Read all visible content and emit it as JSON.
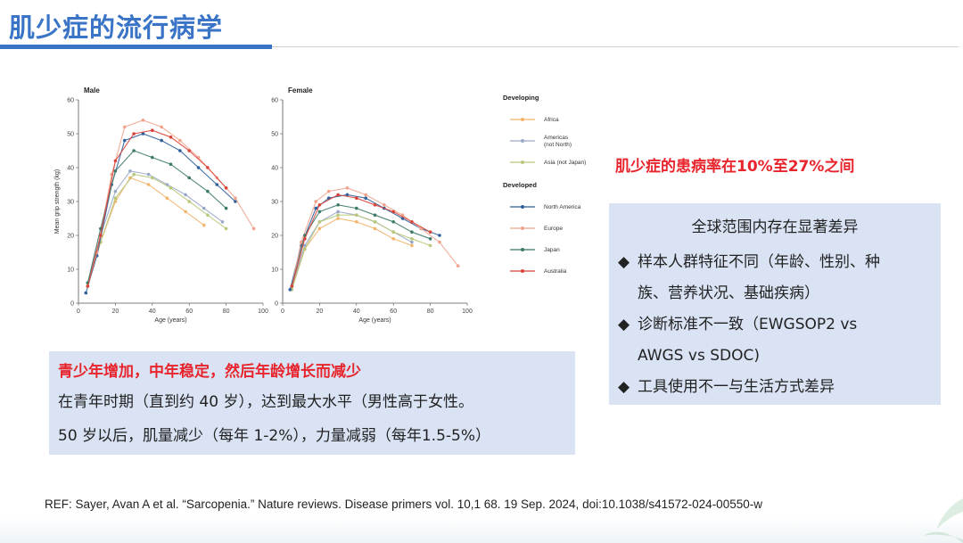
{
  "slide": {
    "title": "肌少症的流行病学",
    "prevalence_note": "肌少症的患病率在10%至27%之间",
    "right_box": {
      "heading": "全球范围内存在显著差异",
      "items": [
        "样本人群特征不同（年龄、性别、种",
        "族、营养状况、基础疾病）",
        "诊断标准不一致（EWGSOP2 vs",
        "AWGS vs SDOC)",
        "工具使用不一与生活方式差异"
      ],
      "bullet": "◆"
    },
    "left_box": {
      "highlight": "青少年增加，中年稳定，然后年龄增长而减少",
      "line1": "在青年时期（直到约 40 岁），达到最大水平（男性高于女性。",
      "line2": "50 岁以后，肌量减少（每年 1-2%），力量减弱（每年1.5-5%）"
    },
    "reference": "REF: Sayer, Avan A et al. “Sarcopenia.” Nature reviews. Disease primers vol. 10,1 68. 19 Sep. 2024, doi:10.1038/s41572-024-00550-w"
  },
  "colors": {
    "title": "#3a74c6",
    "red": "#e8242c",
    "box_bg": "#d9e3f4",
    "Africa": "#f2b36b",
    "Americas (not North)": "#9aa8c8",
    "Asia (not Japan)": "#b8c87a",
    "North America": "#2f5f9a",
    "Europe": "#f0a48e",
    "Japan": "#3e7a6a",
    "Australia": "#d9443a"
  },
  "chart_data": [
    {
      "type": "line",
      "title": "Male",
      "xlabel": "Age (years)",
      "ylabel": "Mean grip strength (kg)",
      "xlim": [
        0,
        100
      ],
      "ylim": [
        0,
        60
      ],
      "xticks": [
        0,
        20,
        40,
        60,
        80,
        100
      ],
      "yticks": [
        0,
        10,
        20,
        30,
        40,
        50,
        60
      ],
      "series": [
        {
          "name": "Africa",
          "x": [
            5,
            12,
            20,
            28,
            38,
            48,
            58,
            68
          ],
          "y": [
            5,
            18,
            30,
            37,
            35,
            31,
            27,
            23
          ]
        },
        {
          "name": "Americas (not North)",
          "x": [
            5,
            12,
            20,
            28,
            38,
            48,
            58,
            68,
            78
          ],
          "y": [
            6,
            20,
            33,
            39,
            38,
            35,
            32,
            28,
            24
          ]
        },
        {
          "name": "Asia (not Japan)",
          "x": [
            5,
            12,
            20,
            30,
            40,
            50,
            60,
            70,
            80
          ],
          "y": [
            5,
            18,
            31,
            38,
            37,
            34,
            30,
            26,
            22
          ]
        },
        {
          "name": "North America",
          "x": [
            4,
            10,
            18,
            25,
            35,
            45,
            55,
            65,
            75,
            85
          ],
          "y": [
            3,
            14,
            35,
            48,
            50,
            48,
            45,
            40,
            35,
            30
          ]
        },
        {
          "name": "Europe",
          "x": [
            5,
            10,
            18,
            25,
            35,
            45,
            55,
            65,
            75,
            85,
            95
          ],
          "y": [
            5,
            15,
            38,
            52,
            54,
            52,
            48,
            43,
            37,
            31,
            22
          ]
        },
        {
          "name": "Japan",
          "x": [
            5,
            12,
            20,
            30,
            40,
            50,
            60,
            70,
            80
          ],
          "y": [
            6,
            22,
            39,
            45,
            43,
            41,
            37,
            33,
            28
          ]
        },
        {
          "name": "Australia",
          "x": [
            5,
            12,
            20,
            30,
            40,
            50,
            60,
            70,
            80
          ],
          "y": [
            5,
            20,
            42,
            50,
            51,
            49,
            45,
            40,
            34
          ]
        }
      ]
    },
    {
      "type": "line",
      "title": "Female",
      "xlabel": "Age (years)",
      "ylabel": "",
      "xlim": [
        0,
        100
      ],
      "ylim": [
        0,
        60
      ],
      "xticks": [
        0,
        20,
        40,
        60,
        80,
        100
      ],
      "yticks": [
        0,
        10,
        20,
        30,
        40,
        50,
        60
      ],
      "series": [
        {
          "name": "Africa",
          "x": [
            5,
            12,
            20,
            30,
            40,
            50,
            60,
            70
          ],
          "y": [
            5,
            16,
            22,
            25,
            24,
            22,
            19,
            17
          ]
        },
        {
          "name": "Americas (not North)",
          "x": [
            5,
            12,
            20,
            30,
            40,
            50,
            60,
            70
          ],
          "y": [
            5,
            17,
            24,
            27,
            26,
            24,
            21,
            18
          ]
        },
        {
          "name": "Asia (not Japan)",
          "x": [
            5,
            12,
            20,
            30,
            40,
            50,
            60,
            70,
            80
          ],
          "y": [
            4,
            16,
            24,
            26,
            26,
            24,
            21,
            19,
            17
          ]
        },
        {
          "name": "North America",
          "x": [
            4,
            10,
            18,
            25,
            35,
            45,
            55,
            65,
            75,
            85
          ],
          "y": [
            4,
            17,
            28,
            31,
            32,
            31,
            28,
            25,
            22,
            20
          ]
        },
        {
          "name": "Europe",
          "x": [
            5,
            10,
            18,
            25,
            35,
            45,
            55,
            65,
            75,
            85,
            95
          ],
          "y": [
            5,
            18,
            30,
            33,
            34,
            32,
            29,
            26,
            22,
            18,
            11
          ]
        },
        {
          "name": "Japan",
          "x": [
            5,
            12,
            20,
            30,
            40,
            50,
            60,
            70,
            80
          ],
          "y": [
            5,
            20,
            27,
            29,
            28,
            26,
            24,
            21,
            19
          ]
        },
        {
          "name": "Australia",
          "x": [
            5,
            12,
            20,
            30,
            40,
            50,
            60,
            70,
            80
          ],
          "y": [
            5,
            19,
            29,
            32,
            31,
            29,
            27,
            24,
            21
          ]
        }
      ]
    }
  ],
  "legend": {
    "groups": [
      {
        "label": "Developing",
        "entries": [
          {
            "name": "Africa",
            "text": "Africa"
          },
          {
            "name": "Americas (not North)",
            "text": "Americas",
            "text2": "(not North)"
          },
          {
            "name": "Asia (not Japan)",
            "text": "Asia (not Japan)"
          }
        ]
      },
      {
        "label": "Developed",
        "entries": [
          {
            "name": "North America",
            "text": "North America"
          },
          {
            "name": "Europe",
            "text": "Europe"
          },
          {
            "name": "Japan",
            "text": "Japan"
          },
          {
            "name": "Australia",
            "text": "Australia"
          }
        ]
      }
    ]
  }
}
